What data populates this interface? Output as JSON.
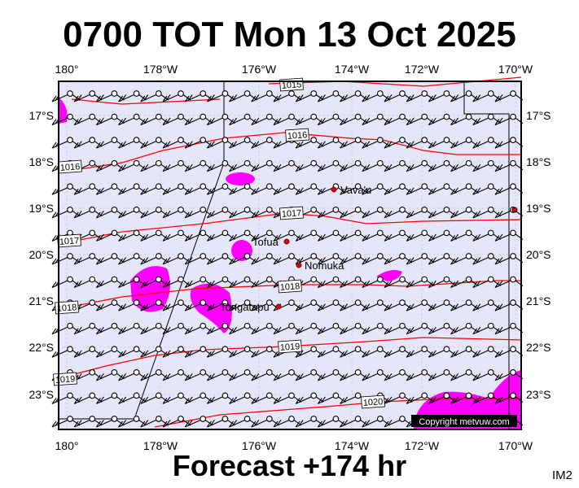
{
  "title": "0700 TOT Mon 13 Oct 2025",
  "footer": "Forecast +174 hr",
  "corner_label": "IM2",
  "copyright": "Copyright metvuw.com",
  "lon_labels": [
    "180°",
    "178°W",
    "176°W",
    "174°W",
    "172°W",
    "170°W"
  ],
  "lat_labels": [
    "17°S",
    "18°S",
    "19°S",
    "20°S",
    "21°S",
    "22°S",
    "23°S"
  ],
  "isobars": [
    {
      "label": "1015"
    },
    {
      "label": "1016"
    },
    {
      "label": "1016"
    },
    {
      "label": "1017"
    },
    {
      "label": "1017"
    },
    {
      "label": "1018"
    },
    {
      "label": "1018"
    },
    {
      "label": "1019"
    },
    {
      "label": "1019"
    },
    {
      "label": "1020"
    }
  ],
  "places": [
    "Vava'u",
    "Tofua",
    "Nomuka",
    "Tongatapu"
  ],
  "colors": {
    "ocean": "#e6e6fa",
    "isobar": "#ff0000",
    "precip": "#ff00ff",
    "place": "#dd0000"
  }
}
